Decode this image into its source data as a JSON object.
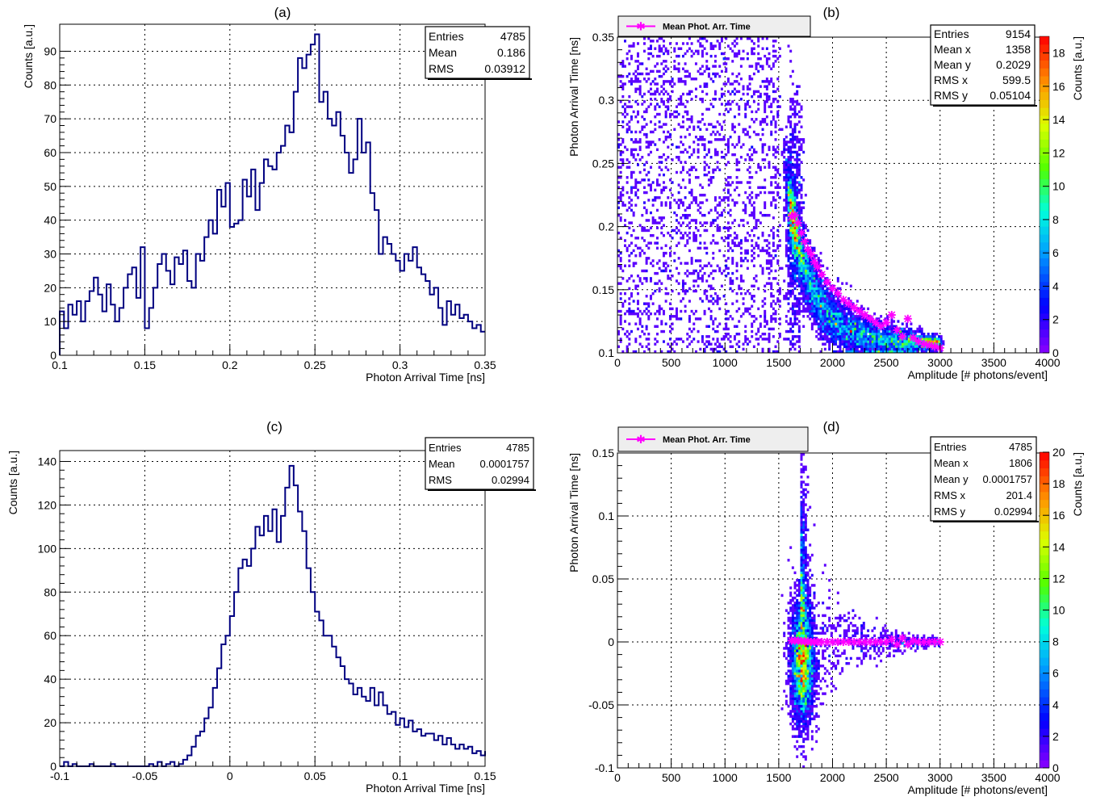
{
  "colors": {
    "hist_line": "#000080",
    "mean_marker": "#ff00ff",
    "grid": "#000000",
    "legend_box": "#eeeeee"
  },
  "chart_data": [
    {
      "type": "histogram",
      "panel_label": "(a)",
      "xlabel": "Photon Arrival Time [ns]",
      "ylabel": "Counts [a.u.]",
      "xlim": [
        0.1,
        0.35
      ],
      "ylim": [
        0,
        98
      ],
      "xticks": [
        0.1,
        0.15,
        0.2,
        0.25,
        0.3,
        0.35
      ],
      "xtick_labels": [
        "0.1",
        "0.15",
        "0.2",
        "0.25",
        "0.3",
        "0.35"
      ],
      "yticks": [
        0,
        10,
        20,
        30,
        40,
        50,
        60,
        70,
        80,
        90
      ],
      "ytick_labels": [
        "0",
        "10",
        "20",
        "30",
        "40",
        "50",
        "60",
        "70",
        "80",
        "90"
      ],
      "grid": true,
      "stats": [
        [
          "Entries",
          "4785"
        ],
        [
          "Mean",
          "0.186"
        ],
        [
          "RMS",
          "0.03912"
        ]
      ],
      "bin_low": 0.1,
      "bin_width": 0.0025,
      "counts": [
        13,
        8,
        15,
        12,
        16,
        10,
        16,
        19,
        23,
        18,
        13,
        21,
        15,
        10,
        14,
        20,
        24,
        26,
        17,
        32,
        8,
        14,
        20,
        27,
        30,
        25,
        21,
        29,
        27,
        31,
        22,
        20,
        30,
        28,
        35,
        40,
        36,
        49,
        44,
        51,
        38,
        39,
        40,
        52,
        47,
        55,
        43,
        51,
        58,
        56,
        55,
        60,
        62,
        68,
        66,
        78,
        88,
        85,
        89,
        92,
        95,
        75,
        78,
        70,
        68,
        72,
        65,
        60,
        54,
        58,
        70,
        60,
        63,
        48,
        43,
        30,
        35,
        33,
        30,
        28,
        25,
        30,
        28,
        32,
        26,
        24,
        22,
        18,
        20,
        14,
        9,
        16,
        12,
        15,
        11,
        12,
        10,
        8,
        9,
        7,
        7,
        6,
        5,
        6,
        5,
        4,
        6,
        4,
        3,
        5,
        3,
        2,
        3,
        2,
        1,
        2,
        1,
        1,
        2,
        1,
        0,
        1,
        0,
        1,
        0,
        0,
        1,
        0,
        0,
        0,
        0,
        0,
        0,
        1,
        0,
        0,
        0,
        0,
        0,
        0,
        0,
        0,
        0,
        0,
        0,
        0,
        0,
        0,
        0,
        0
      ]
    },
    {
      "type": "heatmap",
      "panel_label": "(b)",
      "xlabel": "Amplitude [# photons/event]",
      "ylabel": "Photon Arrival Time [ns]",
      "zlabel": "Counts [a.u.]",
      "xlim": [
        0,
        4000
      ],
      "ylim": [
        0.1,
        0.35
      ],
      "zlim": [
        0,
        19
      ],
      "xticks": [
        0,
        500,
        1000,
        1500,
        2000,
        2500,
        3000,
        3500,
        4000
      ],
      "xtick_labels": [
        "0",
        "500",
        "1000",
        "1500",
        "2000",
        "2500",
        "3000",
        "3500",
        "4000"
      ],
      "yticks": [
        0.1,
        0.15,
        0.2,
        0.25,
        0.3,
        0.35
      ],
      "ytick_labels": [
        "0.1",
        "0.15",
        "0.2",
        "0.25",
        "0.3",
        "0.35"
      ],
      "zticks": [
        0,
        2,
        4,
        6,
        8,
        10,
        12,
        14,
        16,
        18
      ],
      "grid": true,
      "legend": "Mean Phot. Arr. Time",
      "stats": [
        [
          "Entries",
          "9154"
        ],
        [
          "Mean x",
          "1358"
        ],
        [
          "Mean y",
          "0.2029"
        ],
        [
          "RMS x",
          "599.5"
        ],
        [
          "RMS y",
          "0.05104"
        ]
      ],
      "noise_region": {
        "x": [
          0,
          1550
        ],
        "y": [
          0.1,
          0.35
        ]
      },
      "band": [
        [
          1600,
          0.35
        ],
        [
          1650,
          0.27
        ],
        [
          1700,
          0.225
        ],
        [
          1750,
          0.195
        ],
        [
          1800,
          0.175
        ],
        [
          1900,
          0.155
        ],
        [
          2000,
          0.14
        ],
        [
          2200,
          0.128
        ],
        [
          2500,
          0.115
        ],
        [
          3000,
          0.105
        ]
      ],
      "mean_points": {
        "x": [
          1620,
          1650,
          1680,
          1710,
          1740,
          1770,
          1800,
          1830,
          1860,
          1900,
          1950,
          2000,
          2050,
          2100,
          2150,
          2200,
          2250,
          2300,
          2350,
          2400,
          2450,
          2500,
          2550,
          2600,
          2650,
          2700,
          2750,
          2800,
          2850,
          2900,
          2950,
          3000
        ],
        "y": [
          0.208,
          0.209,
          0.203,
          0.195,
          0.188,
          0.182,
          0.178,
          0.172,
          0.168,
          0.162,
          0.156,
          0.151,
          0.147,
          0.142,
          0.139,
          0.136,
          0.133,
          0.13,
          0.127,
          0.124,
          0.121,
          0.124,
          0.13,
          0.118,
          0.113,
          0.127,
          0.112,
          0.109,
          0.107,
          0.106,
          0.105,
          0.104
        ]
      }
    },
    {
      "type": "histogram",
      "panel_label": "(c)",
      "xlabel": "Photon Arrival Time [ns]",
      "ylabel": "Counts [a.u.]",
      "xlim": [
        -0.1,
        0.15
      ],
      "ylim": [
        0,
        145
      ],
      "xticks": [
        -0.1,
        -0.05,
        0,
        0.05,
        0.1,
        0.15
      ],
      "xtick_labels": [
        "-0.1",
        "-0.05",
        "0",
        "0.05",
        "0.1",
        "0.15"
      ],
      "yticks": [
        0,
        20,
        40,
        60,
        80,
        100,
        120,
        140
      ],
      "ytick_labels": [
        "0",
        "20",
        "40",
        "60",
        "80",
        "100",
        "120",
        "140"
      ],
      "grid": true,
      "stats": [
        [
          "Entries",
          "4785"
        ],
        [
          "Mean",
          "0.0001757"
        ],
        [
          "RMS",
          "0.02994"
        ]
      ],
      "bin_low": -0.1,
      "bin_width": 0.0025,
      "counts": [
        0,
        2,
        0,
        1,
        0,
        0,
        0,
        1,
        0,
        0,
        0,
        0,
        1,
        0,
        0,
        0,
        0,
        0,
        0,
        0,
        0,
        1,
        0,
        2,
        0,
        1,
        2,
        0,
        1,
        3,
        5,
        9,
        14,
        16,
        22,
        27,
        36,
        45,
        56,
        60,
        69,
        80,
        91,
        95,
        92,
        100,
        110,
        106,
        115,
        108,
        118,
        103,
        115,
        128,
        138,
        129,
        117,
        108,
        91,
        80,
        71,
        67,
        60,
        60,
        55,
        50,
        46,
        40,
        38,
        33,
        36,
        32,
        30,
        36,
        28,
        34,
        28,
        24,
        25,
        19,
        22,
        18,
        21,
        16,
        17,
        14,
        15,
        15,
        12,
        14,
        10,
        13,
        10,
        8,
        10,
        8,
        9,
        6,
        7,
        5,
        7,
        6,
        4,
        5,
        3,
        4,
        3,
        3,
        2,
        4,
        3,
        2,
        2,
        1,
        2,
        3,
        2,
        2,
        1,
        1,
        1,
        1,
        2,
        1,
        0,
        1,
        1,
        1,
        0,
        1,
        1,
        2,
        0,
        0,
        1,
        0,
        1,
        0,
        1,
        1,
        0,
        0,
        1,
        1,
        0,
        1,
        2,
        1,
        1,
        0
      ]
    },
    {
      "type": "heatmap",
      "panel_label": "(d)",
      "xlabel": "Amplitude [# photons/event]",
      "ylabel": "Photon Arrival Time [ns]",
      "zlabel": "Counts [a.u.]",
      "xlim": [
        0,
        4000
      ],
      "ylim": [
        -0.1,
        0.15
      ],
      "zlim": [
        0,
        20
      ],
      "xticks": [
        0,
        500,
        1000,
        1500,
        2000,
        2500,
        3000,
        3500,
        4000
      ],
      "xtick_labels": [
        "0",
        "500",
        "1000",
        "1500",
        "2000",
        "2500",
        "3000",
        "3500",
        "4000"
      ],
      "yticks": [
        -0.1,
        -0.05,
        0,
        0.05,
        0.1,
        0.15
      ],
      "ytick_labels": [
        "-0.1",
        "-0.05",
        "0",
        "0.05",
        "0.1",
        "0.15"
      ],
      "zticks": [
        0,
        2,
        4,
        6,
        8,
        10,
        12,
        14,
        16,
        18,
        20
      ],
      "grid": true,
      "legend": "Mean Phot. Arr. Time",
      "stats": [
        [
          "Entries",
          "4785"
        ],
        [
          "Mean x",
          "1806"
        ],
        [
          "Mean y",
          "0.0001757"
        ],
        [
          "RMS x",
          "201.4"
        ],
        [
          "RMS y",
          "0.02994"
        ]
      ],
      "mean_points": {
        "x": [
          1620,
          1650,
          1680,
          1710,
          1740,
          1770,
          1800,
          1830,
          1860,
          1900,
          1950,
          2000,
          2050,
          2100,
          2150,
          2200,
          2250,
          2300,
          2350,
          2400,
          2450,
          2500,
          2550,
          2600,
          2650,
          2700,
          2750,
          2800,
          2850,
          2900,
          2950,
          3000
        ],
        "y": [
          0.001,
          0.001,
          0.001,
          0.0005,
          0.0005,
          0.0005,
          0,
          0,
          0,
          0,
          0,
          0,
          0,
          0,
          0,
          0,
          0,
          0,
          0,
          0,
          0,
          0,
          0.002,
          -0.002,
          0.003,
          -0.002,
          0.001,
          0,
          0,
          0,
          0,
          0
        ]
      }
    }
  ]
}
